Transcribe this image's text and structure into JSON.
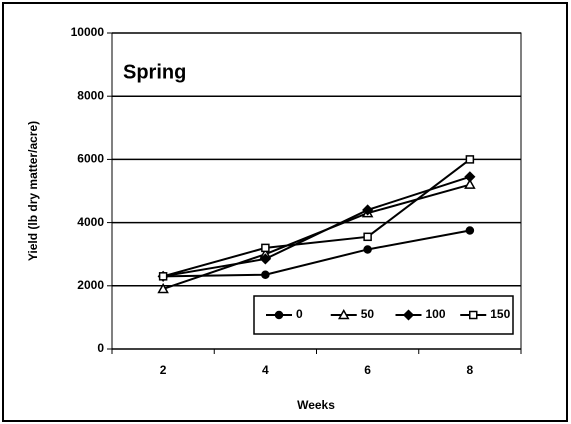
{
  "chart_data": {
    "type": "line",
    "annotation": "Spring",
    "xlabel": "Weeks",
    "ylabel": "Yield (lb dry matter/acre)",
    "categories": [
      "2",
      "4",
      "6",
      "8"
    ],
    "series": [
      {
        "name": "0",
        "color": "#000000",
        "marker": "circle",
        "marker_filled": true,
        "values": [
          2300,
          2350,
          3150,
          3750
        ]
      },
      {
        "name": "50",
        "color": "#000000",
        "marker": "triangle",
        "marker_filled": false,
        "values": [
          1900,
          3000,
          4300,
          5200
        ]
      },
      {
        "name": "100",
        "color": "#000000",
        "marker": "diamond",
        "marker_filled": true,
        "values": [
          2300,
          2850,
          4400,
          5450
        ]
      },
      {
        "name": "150",
        "color": "#000000",
        "marker": "square",
        "marker_filled": false,
        "values": [
          2300,
          3200,
          3550,
          6000
        ]
      }
    ],
    "ylim": [
      0,
      10000
    ],
    "yticks": [
      0,
      2000,
      4000,
      6000,
      8000,
      10000
    ],
    "grid": true,
    "legend": "lower right"
  }
}
